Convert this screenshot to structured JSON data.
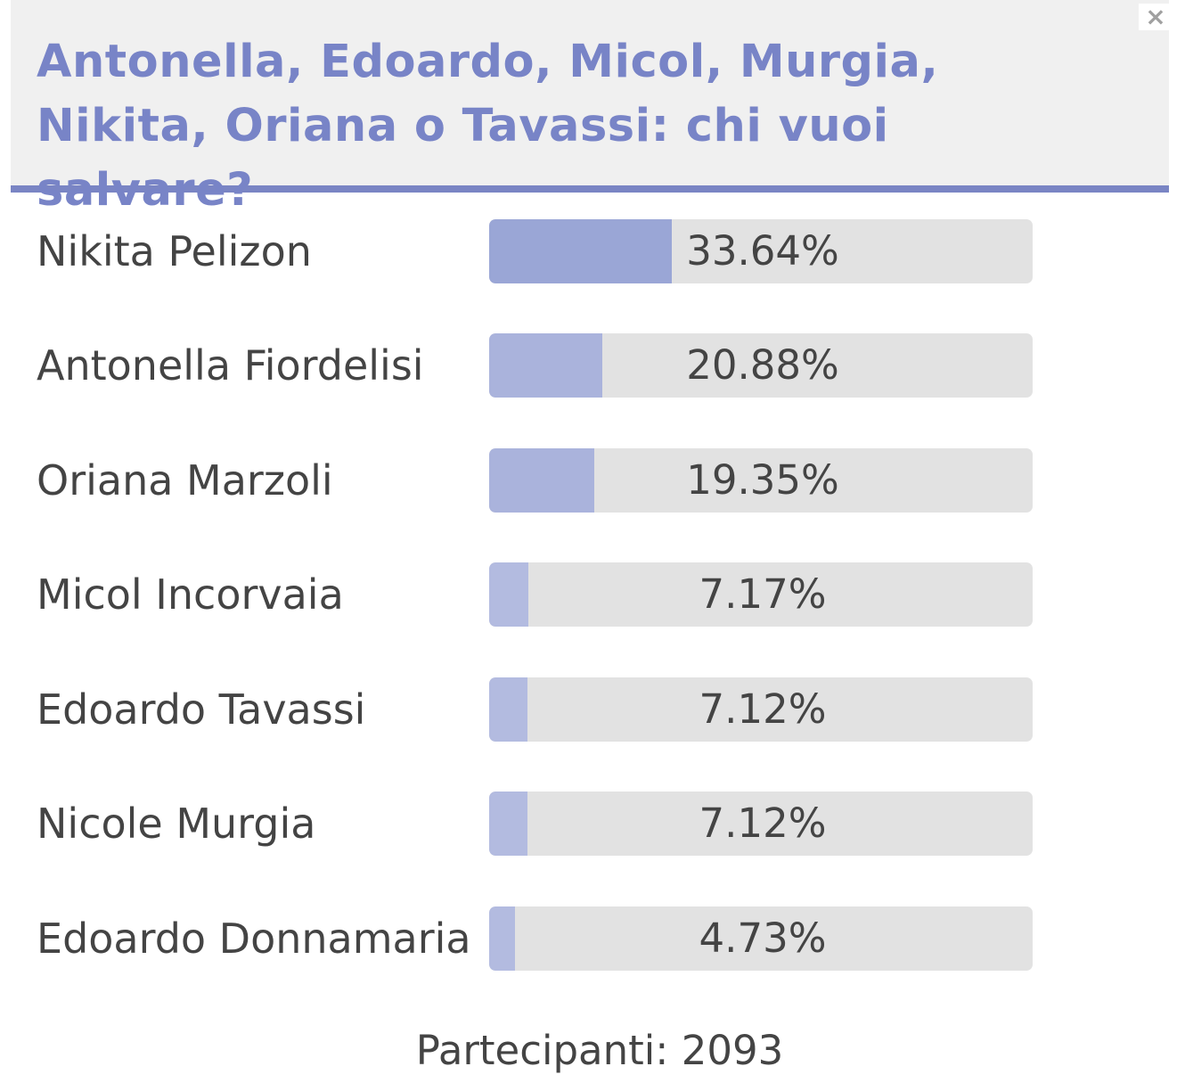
{
  "poll": {
    "title": "Antonella, Edoardo, Micol, Murgia, Nikita, Oriana o Tavassi: chi vuoi salvare?",
    "close_icon": "×",
    "accent_color": "#7a85c4",
    "options": [
      {
        "label": "Nikita Pelizon",
        "percent": 33.64,
        "percent_text": "33.64%",
        "fill_color": "#9aa6d6"
      },
      {
        "label": "Antonella Fiordelisi",
        "percent": 20.88,
        "percent_text": "20.88%",
        "fill_color": "#aab3dc"
      },
      {
        "label": "Oriana Marzoli",
        "percent": 19.35,
        "percent_text": "19.35%",
        "fill_color": "#aab3dc"
      },
      {
        "label": "Micol Incorvaia",
        "percent": 7.17,
        "percent_text": "7.17%",
        "fill_color": "#b3bbe0"
      },
      {
        "label": "Edoardo Tavassi",
        "percent": 7.12,
        "percent_text": "7.12%",
        "fill_color": "#b3bbe0"
      },
      {
        "label": "Nicole Murgia",
        "percent": 7.12,
        "percent_text": "7.12%",
        "fill_color": "#b3bbe0"
      },
      {
        "label": "Edoardo Donnamaria",
        "percent": 4.73,
        "percent_text": "4.73%",
        "fill_color": "#b3bbe0"
      }
    ],
    "participants_text": "Partecipanti: 2093"
  }
}
